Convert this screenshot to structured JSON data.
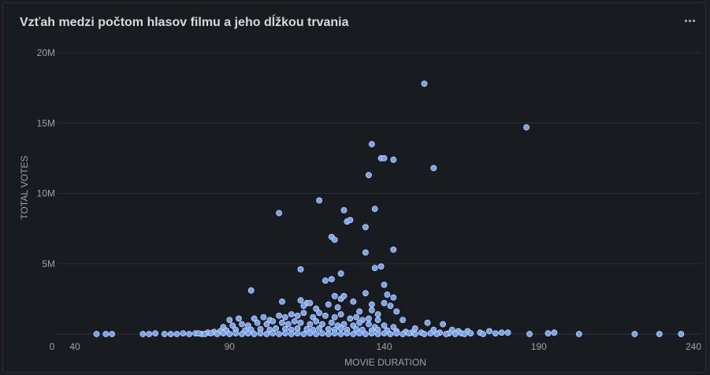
{
  "panel": {
    "title": "Vzťah medzi počtom hlasov filmu a jeho dĺžkou trvania",
    "menu_icon": "more-horizontal-icon"
  },
  "colors": {
    "background": "#181b1f",
    "grid": "#2c2f36",
    "point": "#73a1f5",
    "point_stroke": "#ffffff",
    "text": "#9da1a8"
  },
  "chart_data": {
    "type": "scatter",
    "title": "Vzťah medzi počtom hlasov filmu a jeho dĺžkou trvania",
    "xlabel": "MOVIE DURATION",
    "ylabel": "TOTAL VOTES",
    "xlim": [
      40,
      240
    ],
    "ylim": [
      0,
      20000000
    ],
    "x_ticks": [
      "0",
      "40",
      "90",
      "140",
      "190",
      "240"
    ],
    "y_ticks": [
      "5M",
      "10M",
      "15M",
      "20M"
    ],
    "grid": "horizontal",
    "legend": "none",
    "series": [
      {
        "points": [
          [
            153,
            17800000
          ],
          [
            186,
            14700000
          ],
          [
            136,
            13500000
          ],
          [
            139,
            12500000
          ],
          [
            140,
            12500000
          ],
          [
            143,
            12400000
          ],
          [
            156,
            11800000
          ],
          [
            135,
            11300000
          ],
          [
            119,
            9500000
          ],
          [
            106,
            8600000
          ],
          [
            127,
            8800000
          ],
          [
            128,
            8000000
          ],
          [
            129,
            8100000
          ],
          [
            137,
            8900000
          ],
          [
            134,
            7600000
          ],
          [
            123,
            6900000
          ],
          [
            124,
            6700000
          ],
          [
            143,
            6000000
          ],
          [
            134,
            5800000
          ],
          [
            113,
            4600000
          ],
          [
            137,
            4700000
          ],
          [
            139,
            4800000
          ],
          [
            126,
            4300000
          ],
          [
            121,
            3800000
          ],
          [
            123,
            3900000
          ],
          [
            140,
            3500000
          ],
          [
            97,
            3100000
          ],
          [
            141,
            2800000
          ],
          [
            143,
            2600000
          ],
          [
            113,
            2400000
          ],
          [
            115,
            2200000
          ],
          [
            124,
            2700000
          ],
          [
            126,
            2500000
          ],
          [
            127,
            2700000
          ],
          [
            130,
            2300000
          ],
          [
            134,
            2900000
          ],
          [
            136,
            2100000
          ],
          [
            140,
            2200000
          ],
          [
            142,
            2000000
          ],
          [
            107,
            2300000
          ],
          [
            114,
            2000000
          ],
          [
            116,
            2200000
          ],
          [
            118,
            1800000
          ],
          [
            122,
            2100000
          ],
          [
            125,
            1900000
          ],
          [
            132,
            1600000
          ],
          [
            136,
            1700000
          ],
          [
            138,
            1400000
          ],
          [
            144,
            1600000
          ],
          [
            90,
            1000000
          ],
          [
            93,
            1100000
          ],
          [
            98,
            1100000
          ],
          [
            101,
            1200000
          ],
          [
            103,
            1000000
          ],
          [
            106,
            1300000
          ],
          [
            108,
            1200000
          ],
          [
            110,
            1400000
          ],
          [
            112,
            1300000
          ],
          [
            114,
            1500000
          ],
          [
            117,
            1200000
          ],
          [
            119,
            1500000
          ],
          [
            121,
            1300000
          ],
          [
            124,
            1200000
          ],
          [
            126,
            1400000
          ],
          [
            129,
            1100000
          ],
          [
            131,
            1200000
          ],
          [
            133,
            1000000
          ],
          [
            135,
            1100000
          ],
          [
            138,
            1000000
          ],
          [
            146,
            1000000
          ],
          [
            154,
            800000
          ],
          [
            159,
            700000
          ],
          [
            88,
            500000
          ],
          [
            91,
            600000
          ],
          [
            94,
            700000
          ],
          [
            96,
            600000
          ],
          [
            99,
            800000
          ],
          [
            102,
            700000
          ],
          [
            104,
            900000
          ],
          [
            107,
            800000
          ],
          [
            109,
            700000
          ],
          [
            111,
            900000
          ],
          [
            113,
            800000
          ],
          [
            116,
            700000
          ],
          [
            118,
            900000
          ],
          [
            120,
            700000
          ],
          [
            123,
            800000
          ],
          [
            125,
            600000
          ],
          [
            127,
            700000
          ],
          [
            130,
            600000
          ],
          [
            132,
            800000
          ],
          [
            135,
            700000
          ],
          [
            137,
            500000
          ],
          [
            140,
            600000
          ],
          [
            143,
            500000
          ],
          [
            150,
            400000
          ],
          [
            156,
            300000
          ],
          [
            162,
            300000
          ],
          [
            164,
            200000
          ],
          [
            167,
            200000
          ],
          [
            171,
            100000
          ],
          [
            174,
            200000
          ],
          [
            178,
            100000
          ],
          [
            180,
            100000
          ],
          [
            187,
            0
          ],
          [
            193,
            50000
          ],
          [
            195,
            100000
          ],
          [
            203,
            0
          ],
          [
            221,
            0
          ],
          [
            229,
            0
          ],
          [
            236,
            0
          ],
          [
            47,
            0
          ],
          [
            50,
            0
          ],
          [
            52,
            0
          ],
          [
            62,
            0
          ],
          [
            64,
            0
          ],
          [
            66,
            50000
          ],
          [
            69,
            0
          ],
          [
            71,
            0
          ],
          [
            73,
            0
          ],
          [
            75,
            50000
          ],
          [
            77,
            0
          ],
          [
            79,
            50000
          ],
          [
            81,
            0
          ],
          [
            83,
            100000
          ],
          [
            85,
            150000
          ],
          [
            87,
            200000
          ],
          [
            89,
            250000
          ],
          [
            92,
            300000
          ],
          [
            95,
            250000
          ],
          [
            97,
            300000
          ],
          [
            100,
            350000
          ],
          [
            103,
            300000
          ],
          [
            105,
            400000
          ],
          [
            108,
            350000
          ],
          [
            110,
            300000
          ],
          [
            112,
            400000
          ],
          [
            115,
            350000
          ],
          [
            117,
            300000
          ],
          [
            119,
            400000
          ],
          [
            122,
            350000
          ],
          [
            124,
            300000
          ],
          [
            126,
            400000
          ],
          [
            128,
            300000
          ],
          [
            131,
            350000
          ],
          [
            133,
            300000
          ],
          [
            136,
            250000
          ],
          [
            138,
            300000
          ],
          [
            141,
            250000
          ],
          [
            144,
            200000
          ],
          [
            147,
            150000
          ],
          [
            149,
            100000
          ],
          [
            152,
            100000
          ],
          [
            155,
            50000
          ],
          [
            158,
            100000
          ],
          [
            161,
            50000
          ],
          [
            165,
            50000
          ],
          [
            168,
            50000
          ],
          [
            172,
            0
          ],
          [
            176,
            50000
          ],
          [
            80,
            50000
          ],
          [
            82,
            0
          ],
          [
            84,
            50000
          ],
          [
            86,
            0
          ],
          [
            88,
            50000
          ],
          [
            90,
            0
          ],
          [
            92,
            50000
          ],
          [
            94,
            0
          ],
          [
            96,
            50000
          ],
          [
            98,
            0
          ],
          [
            100,
            50000
          ],
          [
            102,
            0
          ],
          [
            104,
            50000
          ],
          [
            106,
            0
          ],
          [
            108,
            50000
          ],
          [
            110,
            0
          ],
          [
            112,
            50000
          ],
          [
            114,
            0
          ],
          [
            116,
            50000
          ],
          [
            118,
            0
          ],
          [
            120,
            50000
          ],
          [
            122,
            0
          ],
          [
            124,
            50000
          ],
          [
            126,
            0
          ],
          [
            128,
            50000
          ],
          [
            130,
            0
          ],
          [
            132,
            50000
          ],
          [
            134,
            0
          ],
          [
            136,
            50000
          ],
          [
            138,
            0
          ],
          [
            140,
            50000
          ],
          [
            142,
            0
          ],
          [
            144,
            50000
          ],
          [
            146,
            0
          ],
          [
            148,
            50000
          ],
          [
            150,
            0
          ],
          [
            153,
            0
          ],
          [
            157,
            0
          ],
          [
            160,
            0
          ],
          [
            163,
            0
          ],
          [
            166,
            0
          ]
        ]
      }
    ]
  }
}
